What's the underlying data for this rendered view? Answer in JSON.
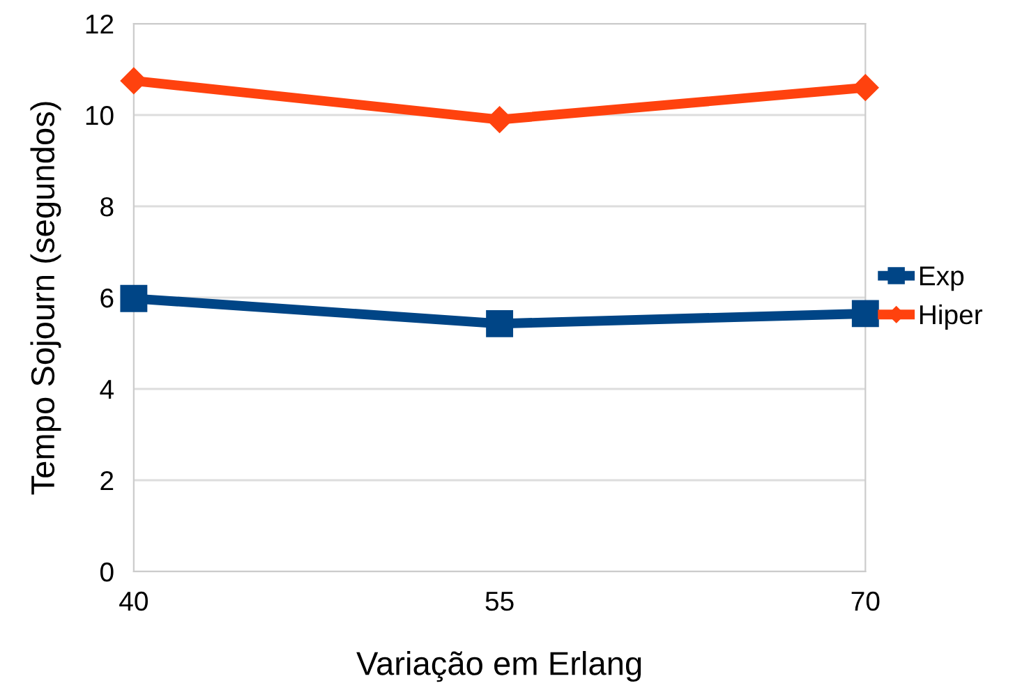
{
  "chart_data": {
    "type": "line",
    "xlabel": "Variação em Erlang",
    "ylabel": "Tempo Sojourn (segundos)",
    "categories": [
      "40",
      "55",
      "70"
    ],
    "series": [
      {
        "name": "Exp",
        "color": "#004586",
        "values": [
          5.98,
          5.43,
          5.65
        ],
        "marker": "square"
      },
      {
        "name": "Hiper",
        "color": "#ff420e",
        "values": [
          10.75,
          9.9,
          10.6
        ],
        "marker": "diamond"
      }
    ],
    "ylim": [
      0,
      12
    ],
    "yticks": [
      0,
      2,
      4,
      6,
      8,
      10,
      12
    ],
    "grid": "y",
    "legend": "right",
    "line_style": "solid"
  }
}
